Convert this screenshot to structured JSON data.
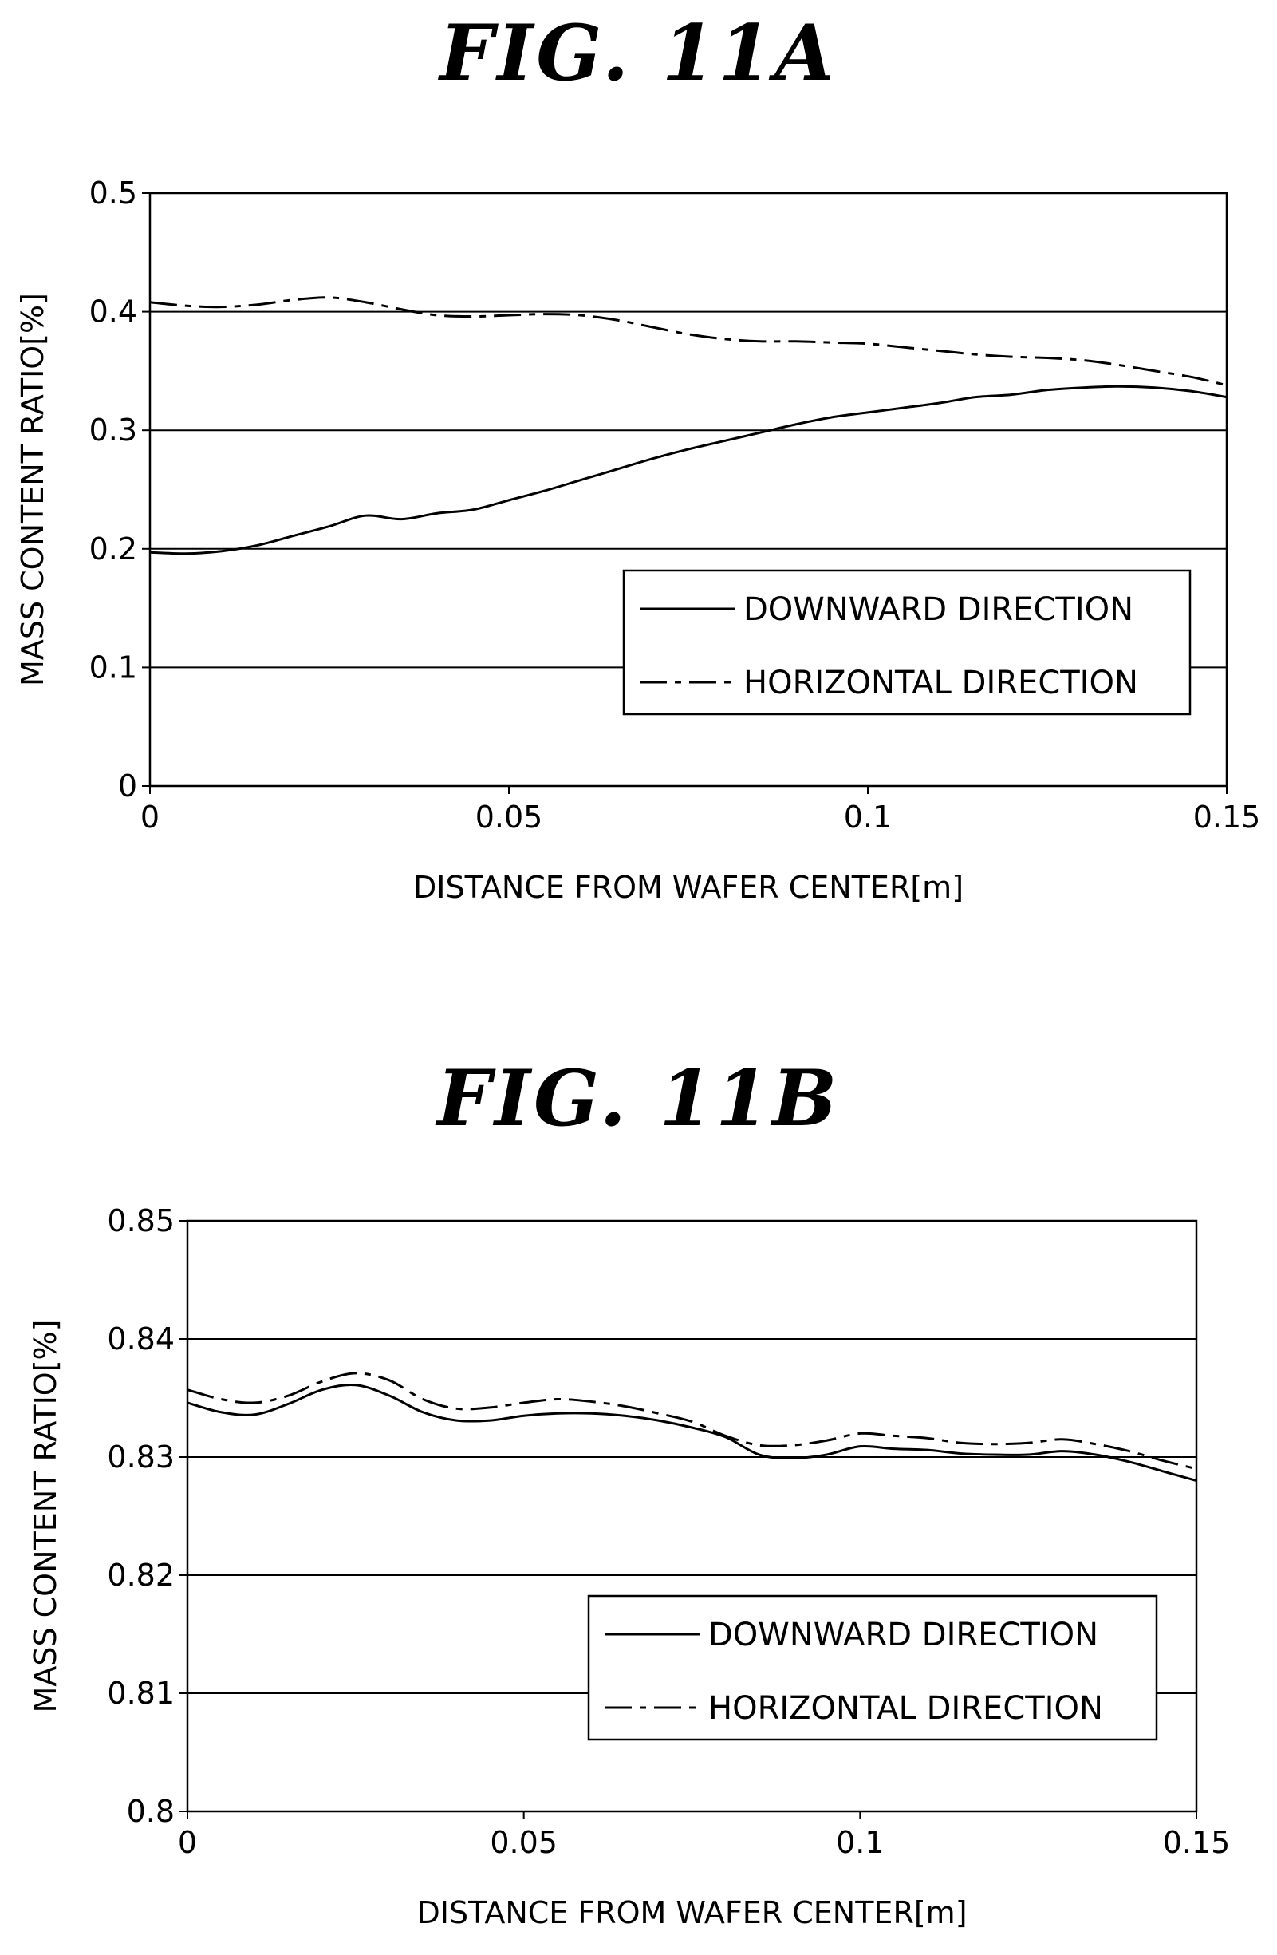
{
  "figures": [
    {
      "title": "FIG. 11A"
    },
    {
      "title": "FIG. 11B"
    }
  ],
  "chart_data": [
    {
      "type": "line",
      "title": "FIG. 11A",
      "xlabel": "DISTANCE FROM WAFER CENTER[m]",
      "ylabel": "MASS CONTENT RATIO[%]",
      "xlim": [
        0,
        0.15
      ],
      "ylim": [
        0,
        0.5
      ],
      "x_ticks": [
        "0",
        "0.05",
        "0.1",
        "0.15"
      ],
      "y_ticks": [
        "0",
        "0.1",
        "0.2",
        "0.3",
        "0.4",
        "0.5"
      ],
      "grid": "horizontal",
      "legend_position": "bottom-right",
      "series": [
        {
          "name": "DOWNWARD DIRECTION",
          "line_style": "solid",
          "x": [
            0,
            0.005,
            0.01,
            0.015,
            0.02,
            0.025,
            0.03,
            0.035,
            0.04,
            0.045,
            0.05,
            0.055,
            0.06,
            0.065,
            0.07,
            0.075,
            0.08,
            0.085,
            0.09,
            0.095,
            0.1,
            0.105,
            0.11,
            0.115,
            0.12,
            0.125,
            0.13,
            0.135,
            0.14,
            0.145,
            0.15
          ],
          "values": [
            0.197,
            0.196,
            0.198,
            0.203,
            0.211,
            0.219,
            0.228,
            0.225,
            0.23,
            0.233,
            0.241,
            0.249,
            0.258,
            0.267,
            0.276,
            0.284,
            0.291,
            0.298,
            0.305,
            0.311,
            0.315,
            0.319,
            0.323,
            0.328,
            0.33,
            0.334,
            0.336,
            0.337,
            0.336,
            0.333,
            0.328
          ]
        },
        {
          "name": "HORIZONTAL DIRECTION",
          "line_style": "dash-dot",
          "x": [
            0,
            0.005,
            0.01,
            0.015,
            0.02,
            0.025,
            0.03,
            0.035,
            0.04,
            0.045,
            0.05,
            0.055,
            0.06,
            0.065,
            0.07,
            0.075,
            0.08,
            0.085,
            0.09,
            0.095,
            0.1,
            0.105,
            0.11,
            0.115,
            0.12,
            0.125,
            0.13,
            0.135,
            0.14,
            0.145,
            0.15
          ],
          "values": [
            0.408,
            0.405,
            0.404,
            0.406,
            0.41,
            0.412,
            0.408,
            0.402,
            0.397,
            0.396,
            0.397,
            0.398,
            0.397,
            0.393,
            0.387,
            0.381,
            0.377,
            0.375,
            0.375,
            0.374,
            0.373,
            0.37,
            0.367,
            0.364,
            0.362,
            0.361,
            0.359,
            0.355,
            0.35,
            0.345,
            0.338
          ]
        }
      ]
    },
    {
      "type": "line",
      "title": "FIG. 11B",
      "xlabel": "DISTANCE FROM WAFER CENTER[m]",
      "ylabel": "MASS CONTENT RATIO[%]",
      "xlim": [
        0,
        0.15
      ],
      "ylim": [
        0.8,
        0.85
      ],
      "x_ticks": [
        "0",
        "0.05",
        "0.1",
        "0.15"
      ],
      "y_ticks": [
        "0.8",
        "0.81",
        "0.82",
        "0.83",
        "0.84",
        "0.85"
      ],
      "grid": "horizontal",
      "legend_position": "bottom-right",
      "series": [
        {
          "name": "DOWNWARD DIRECTION",
          "line_style": "solid",
          "x": [
            0,
            0.005,
            0.01,
            0.015,
            0.02,
            0.025,
            0.03,
            0.035,
            0.04,
            0.045,
            0.05,
            0.055,
            0.06,
            0.065,
            0.07,
            0.075,
            0.08,
            0.085,
            0.09,
            0.095,
            0.1,
            0.105,
            0.11,
            0.115,
            0.12,
            0.125,
            0.13,
            0.135,
            0.14,
            0.145,
            0.15
          ],
          "values": [
            0.8346,
            0.8338,
            0.8336,
            0.8345,
            0.8357,
            0.8361,
            0.8352,
            0.8338,
            0.8331,
            0.8331,
            0.8335,
            0.8337,
            0.8337,
            0.8335,
            0.8331,
            0.8325,
            0.8317,
            0.8302,
            0.8299,
            0.8302,
            0.8309,
            0.8307,
            0.8306,
            0.8303,
            0.8302,
            0.8302,
            0.8305,
            0.8302,
            0.8296,
            0.8288,
            0.828
          ]
        },
        {
          "name": "HORIZONTAL DIRECTION",
          "line_style": "dash-dot",
          "x": [
            0,
            0.005,
            0.01,
            0.015,
            0.02,
            0.025,
            0.03,
            0.035,
            0.04,
            0.045,
            0.05,
            0.055,
            0.06,
            0.065,
            0.07,
            0.075,
            0.08,
            0.085,
            0.09,
            0.095,
            0.1,
            0.105,
            0.11,
            0.115,
            0.12,
            0.125,
            0.13,
            0.135,
            0.14,
            0.145,
            0.15
          ],
          "values": [
            0.8357,
            0.8349,
            0.8346,
            0.8352,
            0.8364,
            0.8371,
            0.8365,
            0.8349,
            0.8341,
            0.8342,
            0.8346,
            0.8349,
            0.8347,
            0.8343,
            0.8337,
            0.833,
            0.8318,
            0.831,
            0.831,
            0.8314,
            0.832,
            0.8318,
            0.8316,
            0.8312,
            0.8311,
            0.8312,
            0.8315,
            0.8311,
            0.8305,
            0.8297,
            0.829
          ]
        }
      ]
    }
  ]
}
